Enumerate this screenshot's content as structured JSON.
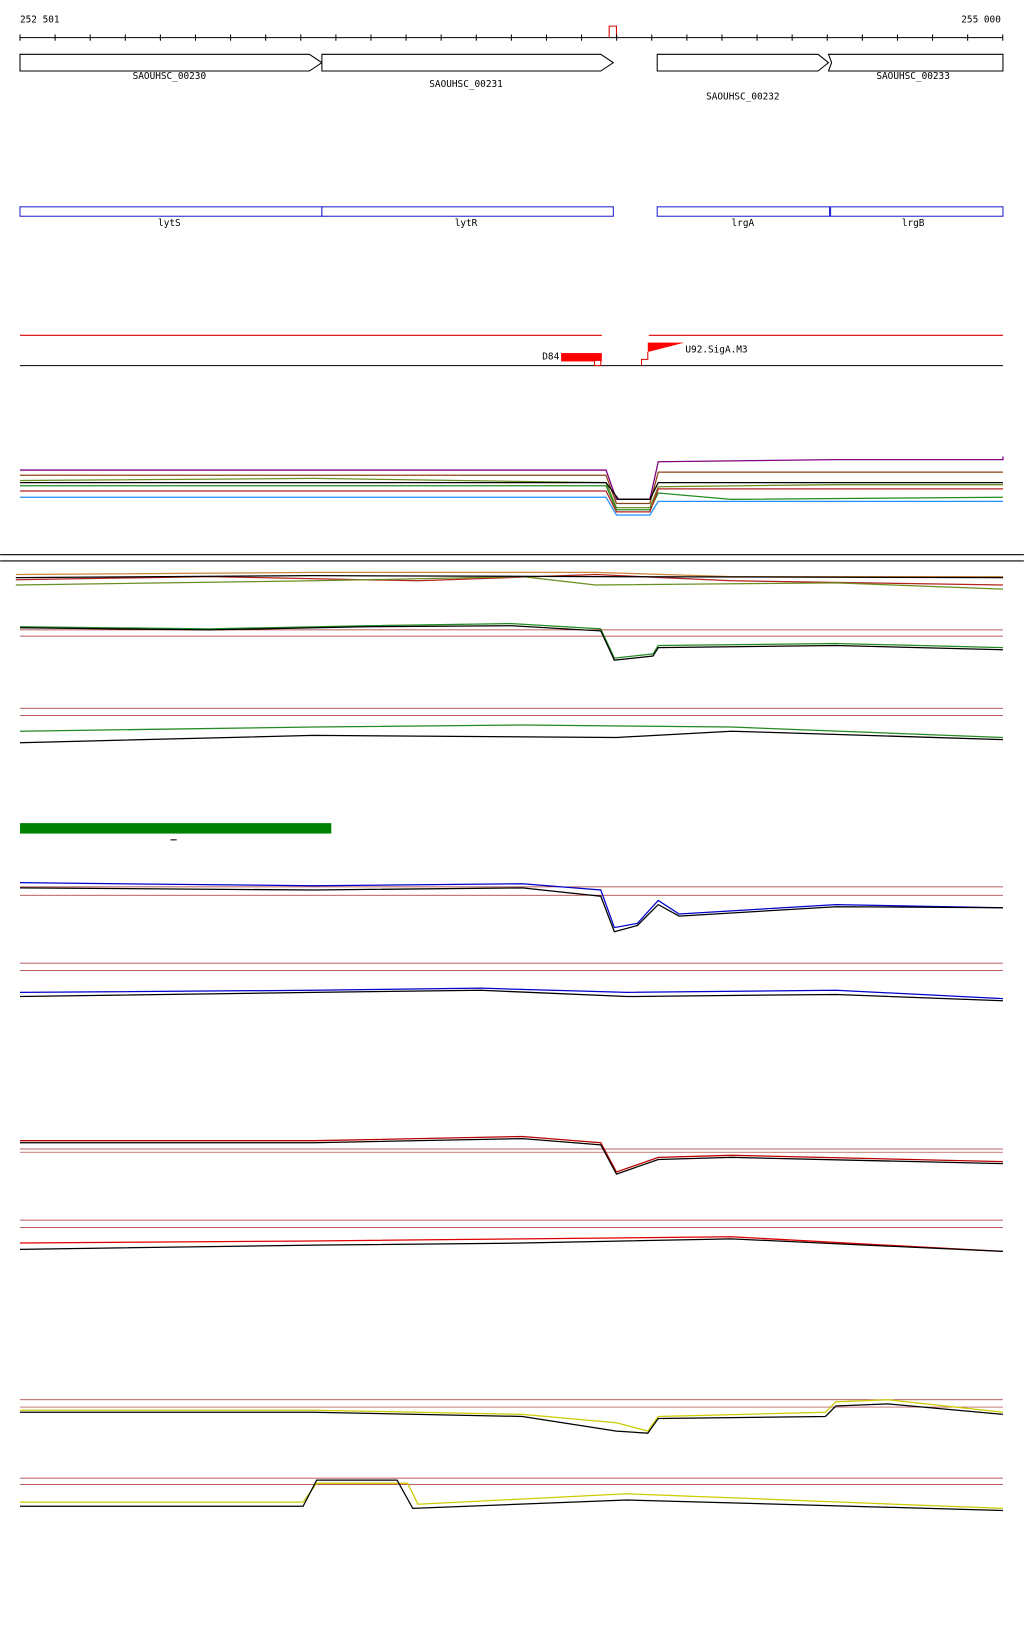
{
  "ruler": {
    "start": "252 501",
    "end": "255 000"
  },
  "genes": [
    "SAOUHSC_00230",
    "SAOUHSC_00231",
    "SAOUHSC_00232",
    "SAOUHSC_00233"
  ],
  "names": [
    "lytS",
    "lytR",
    "lrgA",
    "lrgB"
  ],
  "features": [
    "D84",
    "U92.SigA.M3"
  ]
}
